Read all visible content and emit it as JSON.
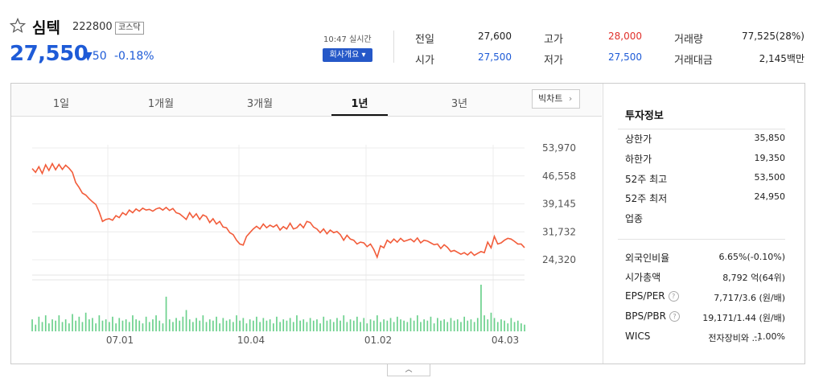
{
  "header": {
    "stock_name": "심텍",
    "stock_code": "222800",
    "market_badge": "코스닥",
    "price": "27,550",
    "change_symbol": "▼",
    "change": "50",
    "change_pct": "-0.18%",
    "realtime_label": "10:47 실시간",
    "overview_button": "회사개요 ▾",
    "price_color": "#1e5bd7"
  },
  "quote": {
    "items": [
      {
        "label": "전일",
        "value": "27,600"
      },
      {
        "label": "고가",
        "value": "28,000"
      },
      {
        "label": "거래량",
        "value": "77,525(28%)"
      },
      {
        "label": "시가",
        "value": "27,500"
      },
      {
        "label": "저가",
        "value": "27,500"
      },
      {
        "label": "거래대금",
        "value": "2,145백만"
      }
    ]
  },
  "tabs": [
    "1일",
    "1개월",
    "3개월",
    "1년",
    "3년"
  ],
  "active_tab": "1년",
  "big_chart_button": "빅차트",
  "investment": {
    "title": "투자정보",
    "items": [
      {
        "label": "상한가",
        "value": "35,850"
      },
      {
        "label": "하한가",
        "value": "19,350"
      },
      {
        "label": "52주 최고",
        "value": "53,500"
      },
      {
        "label": "52주 최저",
        "value": "24,950"
      },
      {
        "label": "업종",
        "value": ""
      },
      {
        "label": "외국인비율",
        "value": "6.65%(-0.10%)"
      },
      {
        "label": "시가총액",
        "value": "8,792 억(64위)"
      },
      {
        "label": "EPS/PER",
        "value": "7,717/3.6 (원/배)"
      },
      {
        "label": "BPS/PBR",
        "value": "19,171/1.44 (원/배)"
      },
      {
        "label": "WICS",
        "value": "전자장비와 ..."
      },
      {
        "label": "",
        "value": "-1.00%"
      }
    ]
  },
  "chart_data": {
    "type": "line",
    "series": [
      {
        "values": [
          48500,
          47500,
          49000,
          47200,
          49500,
          48000,
          49800,
          48200,
          49600,
          48300,
          49400,
          48600,
          47500,
          44800,
          43500,
          42000,
          41500,
          40500,
          39700,
          39000,
          37000,
          34500,
          35000,
          35200,
          34800,
          36000,
          35500,
          36800,
          36200,
          37500,
          36800,
          37800,
          37200,
          38000,
          37500,
          37700,
          37200,
          37800,
          38100,
          37500,
          38200,
          37400,
          37900,
          36800,
          36500,
          35800,
          35000,
          36800,
          35500,
          36500,
          35000,
          36200,
          35800,
          34200,
          35200,
          33800,
          34500,
          33000,
          32800,
          31500,
          31000,
          29500,
          28500,
          28200,
          30500,
          31500,
          32500,
          33200,
          32500,
          33800,
          32800,
          33500,
          33000,
          33600,
          32200,
          33100,
          32500,
          34000,
          32500,
          32800,
          33800,
          32800,
          34500,
          34200,
          33000,
          32500,
          31500,
          32500,
          31200,
          32200,
          31500,
          31800,
          31000,
          29500,
          30800,
          29800,
          29500,
          28500,
          29000,
          28800,
          27800,
          28500,
          27000,
          25000,
          28000,
          27500,
          29500,
          28800,
          29800,
          29000,
          30000,
          29200,
          29500,
          29800,
          29100,
          30100,
          28800,
          29500,
          29300,
          28800,
          28300,
          28500,
          27300,
          28300,
          27600,
          26500,
          26800,
          26300,
          25800,
          26200,
          25600,
          26400,
          25500,
          26000,
          26500,
          26200,
          29000,
          27500,
          30500,
          28500,
          28800,
          29500,
          30000,
          29800,
          29200,
          28500,
          28500,
          27550
        ]
      }
    ],
    "y_ticks": [
      "53,970",
      "46,558",
      "39,145",
      "31,732",
      "24,320"
    ],
    "x_ticks": [
      "07.01",
      "10.04",
      "01.02",
      "04.03"
    ],
    "volume": [
      9,
      5,
      11,
      7,
      12,
      6,
      9,
      8,
      12,
      7,
      9,
      6,
      13,
      8,
      11,
      7,
      14,
      9,
      10,
      6,
      12,
      8,
      9,
      7,
      11,
      6,
      10,
      8,
      9,
      7,
      12,
      9,
      8,
      6,
      11,
      7,
      9,
      12,
      8,
      6,
      26,
      9,
      7,
      10,
      8,
      11,
      16,
      9,
      7,
      10,
      8,
      12,
      7,
      9,
      8,
      11,
      6,
      10,
      8,
      9,
      7,
      12,
      8,
      10,
      6,
      9,
      8,
      11,
      7,
      10,
      8,
      9,
      6,
      11,
      7,
      9,
      8,
      10,
      7,
      12,
      8,
      9,
      7,
      10,
      8,
      9,
      6,
      11,
      8,
      9,
      7,
      10,
      8,
      12,
      7,
      9,
      8,
      11,
      7,
      10,
      6,
      9,
      8,
      12,
      7,
      9,
      8,
      10,
      7,
      11,
      9,
      8,
      7,
      10,
      8,
      12,
      7,
      9,
      8,
      11,
      6,
      10,
      8,
      9,
      7,
      10,
      8,
      9,
      7,
      11,
      8,
      9,
      7,
      10,
      35,
      12,
      9,
      14,
      10,
      7,
      9,
      8,
      6,
      10,
      7,
      8,
      6,
      5
    ],
    "line_color": "#f25c3a",
    "volume_color": "#6cd18d"
  }
}
